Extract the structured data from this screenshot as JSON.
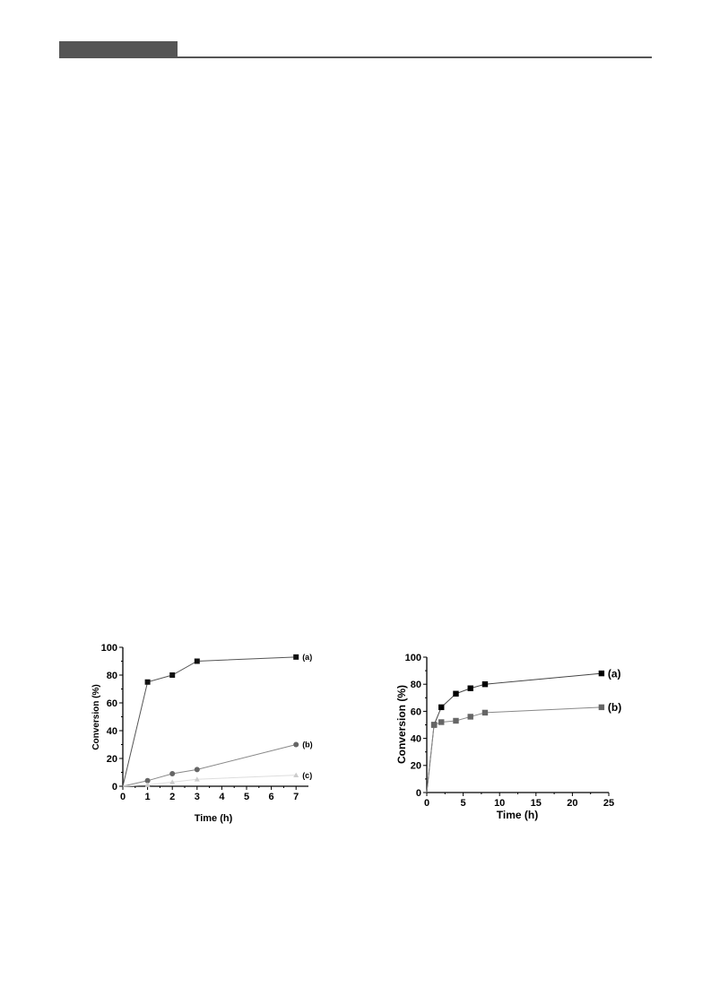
{
  "header": {
    "bar_color": "#555555"
  },
  "chart_data": [
    {
      "type": "line",
      "xlabel": "Time (h)",
      "ylabel": "Conversion (%)",
      "xlim": [
        0,
        7.5
      ],
      "ylim": [
        0,
        100
      ],
      "xticks": [
        0,
        1,
        2,
        3,
        4,
        5,
        6,
        7
      ],
      "yticks": [
        0,
        20,
        40,
        60,
        80,
        100
      ],
      "grid": false,
      "series": [
        {
          "name": "(a)",
          "marker": "square",
          "color": "#111111",
          "line_color": "#555555",
          "x": [
            0,
            1,
            2,
            3,
            7
          ],
          "y": [
            0,
            75,
            80,
            90,
            93
          ]
        },
        {
          "name": "(b)",
          "marker": "circle",
          "color": "#666666",
          "line_color": "#888888",
          "x": [
            0,
            1,
            2,
            3,
            7
          ],
          "y": [
            0,
            4,
            9,
            12,
            30
          ]
        },
        {
          "name": "(c)",
          "marker": "triangle",
          "color": "#cccccc",
          "line_color": "#dddddd",
          "x": [
            0,
            1,
            2,
            3,
            7
          ],
          "y": [
            0,
            1,
            3,
            5,
            8
          ]
        }
      ]
    },
    {
      "type": "line",
      "xlabel": "Time (h)",
      "ylabel": "Conversion (%)",
      "xlim": [
        0,
        25
      ],
      "ylim": [
        0,
        100
      ],
      "xticks": [
        0,
        5,
        10,
        15,
        20,
        25
      ],
      "yticks": [
        0,
        20,
        40,
        60,
        80,
        100
      ],
      "grid": false,
      "series": [
        {
          "name": "(a)",
          "marker": "square",
          "color": "#000000",
          "line_color": "#444444",
          "x": [
            0,
            1,
            2,
            4,
            6,
            8,
            24
          ],
          "y": [
            0,
            50,
            63,
            73,
            77,
            80,
            88
          ]
        },
        {
          "name": "(b)",
          "marker": "square",
          "color": "#666666",
          "line_color": "#888888",
          "x": [
            0,
            1,
            2,
            4,
            6,
            8,
            24
          ],
          "y": [
            0,
            50,
            52,
            53,
            56,
            59,
            63
          ]
        }
      ]
    }
  ]
}
